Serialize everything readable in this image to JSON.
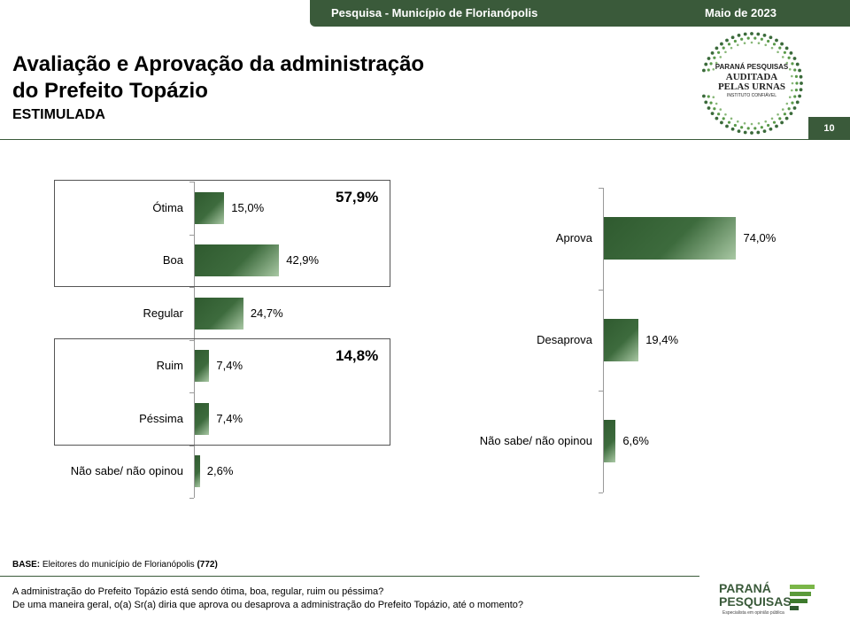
{
  "header": {
    "survey": "Pesquisa - Município de Florianópolis",
    "date": "Maio de 2023",
    "page_number": "10"
  },
  "title_line1": "Avaliação e Aprovação da administração",
  "title_line2": "do Prefeito Topázio",
  "subtitle": "ESTIMULADA",
  "seal": {
    "line1": "PARANÁ PESQUISAS",
    "line2": "AUDITADA",
    "line3": "PELAS URNAS",
    "line4": "INSTITUTO CONFIÁVEL"
  },
  "footer": {
    "base_prefix": "BASE:",
    "base_text": " Eleitores do município de Florianópolis ",
    "base_n": "(772)",
    "question1": "A administração do Prefeito Topázio está sendo ótima, boa, regular, ruim ou péssima?",
    "question2": "De uma maneira geral, o(a) Sr(a) diria que aprova ou desaprova a administração do Prefeito Topázio, até o momento?",
    "logo_line1": "PARANÁ",
    "logo_line2": "PESQUISAS",
    "logo_tagline": "Especialista em opinião pública"
  },
  "chart_data": [
    {
      "type": "bar",
      "orientation": "horizontal",
      "categories": [
        "Ótima",
        "Boa",
        "Regular",
        "Ruim",
        "Péssima",
        "Não sabe/ não opinou"
      ],
      "values": [
        15.0,
        42.9,
        24.7,
        7.4,
        7.4,
        2.6
      ],
      "value_labels": [
        "15,0%",
        "42,9%",
        "24,7%",
        "7,4%",
        "7,4%",
        "2,6%"
      ],
      "groups": [
        {
          "categories": [
            "Ótima",
            "Boa"
          ],
          "total_label": "57,9%"
        },
        {
          "categories": [
            "Ruim",
            "Péssima"
          ],
          "total_label": "14,8%"
        }
      ],
      "xlim": [
        0,
        100
      ],
      "color": "#3d6b3d"
    },
    {
      "type": "bar",
      "orientation": "horizontal",
      "categories": [
        "Aprova",
        "Desaprova",
        "Não sabe/ não opinou"
      ],
      "values": [
        74.0,
        19.4,
        6.6
      ],
      "value_labels": [
        "74,0%",
        "19,4%",
        "6,6%"
      ],
      "xlim": [
        0,
        100
      ],
      "color": "#3d6b3d"
    }
  ]
}
